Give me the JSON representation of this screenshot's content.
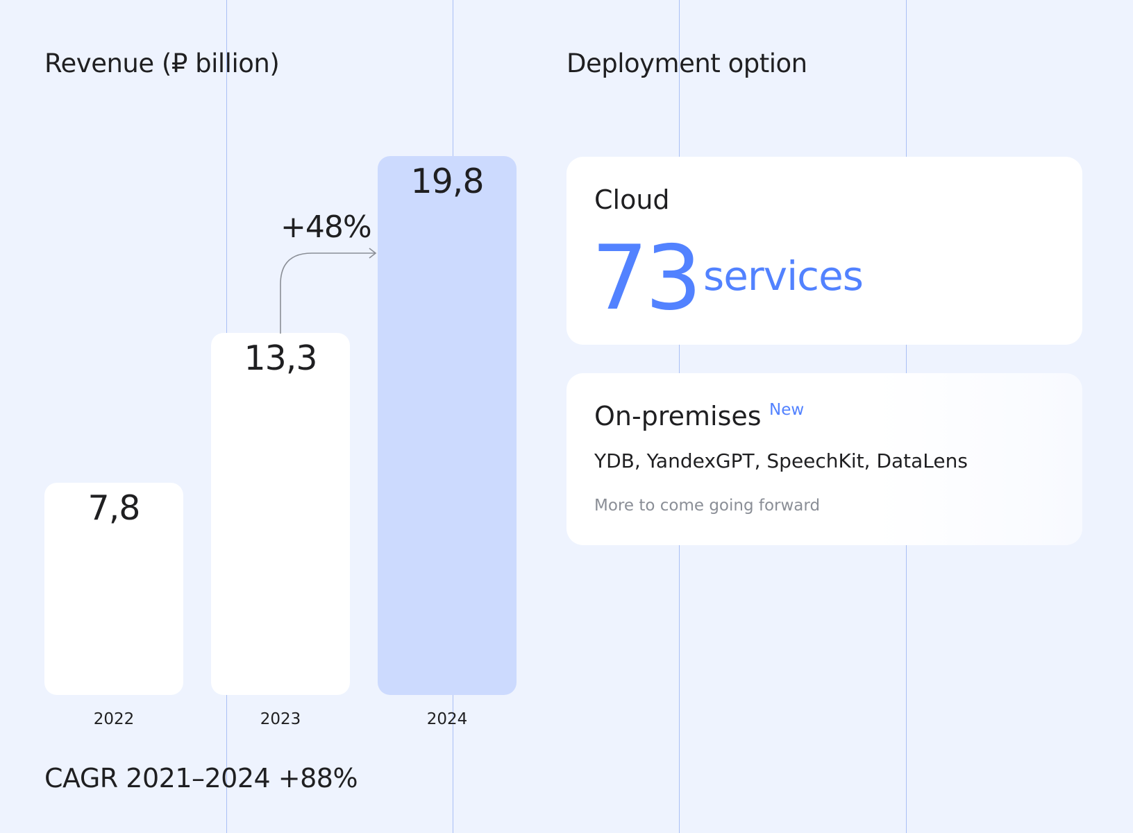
{
  "colors": {
    "background": "#EEF3FE",
    "bar_default": "#FFFFFF",
    "bar_highlight": "#CCDAFE",
    "accent": "#5282FF",
    "gridline": "#A9BFF5",
    "muted_text": "#8A8E96"
  },
  "chart_data": {
    "type": "bar",
    "title": "Revenue (₽ billion)",
    "categories": [
      "2022",
      "2023",
      "2024"
    ],
    "values": [
      7.8,
      13.3,
      19.8
    ],
    "value_labels": [
      "7,8",
      "13,3",
      "19,8"
    ],
    "highlight_category": "2024",
    "ylim": [
      0,
      19.8
    ],
    "grid": false,
    "growth_annotation": {
      "from": "2023",
      "to": "2024",
      "label": "+48%"
    },
    "footnote": "CAGR 2021–2024 +88%"
  },
  "deployment": {
    "title": "Deployment option",
    "cloud": {
      "title": "Cloud",
      "count": "73",
      "unit": "services"
    },
    "on_premises": {
      "title": "On-premises",
      "badge": "New",
      "products": "YDB, YandexGPT, SpeechKit, DataLens",
      "note": "More to come going forward"
    }
  }
}
